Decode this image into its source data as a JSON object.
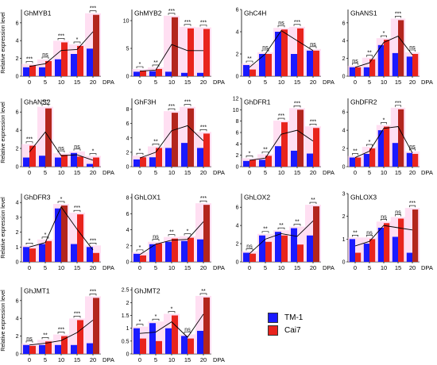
{
  "colors": {
    "tm1": "#1a1aff",
    "cai7": "#e8241d",
    "cai7_dark": "#b3261e",
    "line": "#000000",
    "halo": "#ffc4e8"
  },
  "legend": {
    "items": [
      {
        "label": "TM-1",
        "color": "#1a1aff"
      },
      {
        "label": "Cai7",
        "color": "#e8241d"
      }
    ]
  },
  "chart_data": [
    {
      "type": "bar",
      "title": "GhMYB1",
      "ylabel": "Relative expression level",
      "categories": [
        "0",
        "5",
        "10",
        "15",
        "20"
      ],
      "xunit": "DPA",
      "ylim": [
        0,
        7.5
      ],
      "yticks": [
        0,
        2,
        4,
        6
      ],
      "series": [
        {
          "name": "TM-1",
          "values": [
            1.0,
            1.0,
            1.9,
            2.5,
            3.1
          ]
        },
        {
          "name": "Cai7",
          "values": [
            1.2,
            1.7,
            3.8,
            3.4,
            6.9
          ]
        }
      ],
      "significance": [
        "***",
        "ns",
        "***",
        "*",
        "***"
      ],
      "trend": [
        1.1,
        1.4,
        2.9,
        3.0,
        5.0
      ]
    },
    {
      "type": "bar",
      "title": "GhMYB2",
      "ylabel": "",
      "categories": [
        "0",
        "5",
        "10",
        "15",
        "20"
      ],
      "xunit": "DPA",
      "ylim": [
        0,
        12
      ],
      "yticks": [
        0,
        5,
        10
      ],
      "series": [
        {
          "name": "TM-1",
          "values": [
            0.8,
            0.9,
            0.8,
            0.6,
            0.6
          ]
        },
        {
          "name": "Cai7",
          "values": [
            1.0,
            1.3,
            10.6,
            8.6,
            8.5
          ]
        }
      ],
      "significance": [
        "*",
        "**",
        "***",
        "***",
        "***"
      ],
      "trend": [
        0.9,
        1.1,
        5.7,
        4.6,
        4.6
      ]
    },
    {
      "type": "bar",
      "title": "GhC4H",
      "ylabel": "",
      "categories": [
        "0",
        "5",
        "10",
        "15",
        "20"
      ],
      "xunit": "DPA",
      "ylim": [
        0,
        6
      ],
      "yticks": [
        0,
        2,
        4,
        6
      ],
      "series": [
        {
          "name": "TM-1",
          "values": [
            1.0,
            2.0,
            4.0,
            2.0,
            2.3
          ]
        },
        {
          "name": "Cai7",
          "values": [
            0.6,
            2.0,
            4.2,
            4.3,
            2.3
          ]
        }
      ],
      "significance": [
        "**",
        "ns",
        "ns",
        "***",
        "ns"
      ],
      "trend": [
        0.8,
        2.0,
        4.1,
        3.2,
        2.3
      ]
    },
    {
      "type": "bar",
      "title": "GhANS1",
      "ylabel": "",
      "categories": [
        "0",
        "5",
        "10",
        "15",
        "20"
      ],
      "xunit": "DPA",
      "ylim": [
        0,
        7.5
      ],
      "yticks": [
        0,
        2,
        4,
        6
      ],
      "series": [
        {
          "name": "TM-1",
          "values": [
            1.0,
            1.0,
            3.5,
            2.6,
            2.2
          ]
        },
        {
          "name": "Cai7",
          "values": [
            1.0,
            1.9,
            4.1,
            6.3,
            2.5
          ]
        }
      ],
      "significance": [
        "ns",
        "**",
        "*",
        "***",
        "ns"
      ],
      "trend": [
        1.0,
        1.5,
        3.8,
        4.5,
        2.4
      ]
    },
    {
      "type": "bar",
      "title": "GhANS2",
      "ylabel": "Relative expression level",
      "categories": [
        "0",
        "5",
        "10",
        "15",
        "20"
      ],
      "xunit": "DPA",
      "ylim": [
        0,
        7.5
      ],
      "yticks": [
        0,
        2,
        4,
        6
      ],
      "series": [
        {
          "name": "TM-1",
          "values": [
            1.0,
            1.2,
            1.0,
            1.5,
            0.3
          ]
        },
        {
          "name": "Cai7",
          "values": [
            2.3,
            6.4,
            1.3,
            1.1,
            1.0
          ]
        }
      ],
      "significance": [
        "***",
        "***",
        "ns",
        "ns",
        "*"
      ],
      "trend": [
        1.6,
        3.8,
        1.2,
        1.3,
        0.7
      ]
    },
    {
      "type": "bar",
      "title": "GhF3H",
      "ylabel": "",
      "categories": [
        "0",
        "5",
        "10",
        "15",
        "20"
      ],
      "xunit": "DPA",
      "ylim": [
        0,
        9.5
      ],
      "yticks": [
        0,
        2,
        4,
        6,
        8
      ],
      "series": [
        {
          "name": "TM-1",
          "values": [
            1.0,
            1.3,
            2.6,
            3.3,
            2.6
          ]
        },
        {
          "name": "Cai7",
          "values": [
            1.3,
            2.6,
            7.5,
            8.1,
            4.6
          ]
        }
      ],
      "significance": [
        "*",
        "**",
        "***",
        "***",
        "***"
      ],
      "trend": [
        1.2,
        2.0,
        5.0,
        5.7,
        3.6
      ]
    },
    {
      "type": "bar",
      "title": "GhDFR1",
      "ylabel": "",
      "categories": [
        "0",
        "5",
        "10",
        "15",
        "20"
      ],
      "xunit": "DPA",
      "ylim": [
        0,
        12
      ],
      "yticks": [
        0,
        2,
        4,
        6,
        8,
        10,
        12
      ],
      "series": [
        {
          "name": "TM-1",
          "values": [
            1.0,
            1.2,
            3.6,
            2.8,
            2.3
          ]
        },
        {
          "name": "Cai7",
          "values": [
            1.2,
            1.9,
            7.8,
            10.0,
            6.8
          ]
        }
      ],
      "significance": [
        "*",
        "**",
        "***",
        "***",
        "***"
      ],
      "trend": [
        1.1,
        1.5,
        5.7,
        6.4,
        4.5
      ]
    },
    {
      "type": "bar",
      "title": "GhDFR2",
      "ylabel": "",
      "categories": [
        "0",
        "5",
        "10",
        "15",
        "20"
      ],
      "xunit": "DPA",
      "ylim": [
        0,
        7.5
      ],
      "yticks": [
        0,
        2,
        4,
        6
      ],
      "series": [
        {
          "name": "TM-1",
          "values": [
            1.0,
            1.4,
            4.0,
            2.6,
            1.5
          ]
        },
        {
          "name": "Cai7",
          "values": [
            1.0,
            2.0,
            4.4,
            6.3,
            1.4
          ]
        }
      ],
      "significance": [
        "**",
        "*",
        "*",
        "***",
        "ns"
      ],
      "trend": [
        1.0,
        1.7,
        4.2,
        4.4,
        1.5
      ]
    },
    {
      "type": "bar",
      "title": "GhDFR3",
      "ylabel": "Relative expression level",
      "categories": [
        "0",
        "5",
        "10",
        "15",
        "20"
      ],
      "xunit": "DPA",
      "ylim": [
        0,
        4.6
      ],
      "yticks": [
        0,
        1,
        2,
        3,
        4
      ],
      "series": [
        {
          "name": "TM-1",
          "values": [
            1.0,
            1.2,
            3.6,
            1.2,
            1.0
          ]
        },
        {
          "name": "Cai7",
          "values": [
            0.9,
            1.4,
            3.8,
            3.2,
            0.6
          ]
        }
      ],
      "significance": [
        "*",
        "*",
        "*",
        "***",
        "***"
      ],
      "trend": [
        1.0,
        1.3,
        3.7,
        2.2,
        0.8
      ]
    },
    {
      "type": "bar",
      "title": "GhLOX1",
      "ylabel": "",
      "categories": [
        "0",
        "5",
        "10",
        "15",
        "20"
      ],
      "xunit": "DPA",
      "ylim": [
        0,
        8.5
      ],
      "yticks": [
        0,
        2,
        4,
        6,
        8
      ],
      "series": [
        {
          "name": "TM-1",
          "values": [
            1.0,
            2.2,
            2.5,
            2.6,
            2.8
          ]
        },
        {
          "name": "Cai7",
          "values": [
            0.8,
            2.3,
            2.9,
            3.0,
            7.1
          ]
        }
      ],
      "significance": [
        "*",
        "ns",
        "**",
        "*",
        "***"
      ],
      "trend": [
        0.9,
        2.2,
        2.7,
        2.8,
        5.0
      ]
    },
    {
      "type": "bar",
      "title": "GhLOX2",
      "ylabel": "",
      "categories": [
        "0",
        "5",
        "10",
        "15",
        "20"
      ],
      "xunit": "DPA",
      "ylim": [
        0,
        7.5
      ],
      "yticks": [
        0,
        2,
        4,
        6
      ],
      "series": [
        {
          "name": "TM-1",
          "values": [
            1.0,
            2.9,
            3.3,
            3.7,
            2.9
          ]
        },
        {
          "name": "Cai7",
          "values": [
            0.9,
            2.2,
            2.9,
            1.9,
            6.1
          ]
        }
      ],
      "significance": [
        "ns",
        "**",
        "**",
        "**",
        "**"
      ],
      "trend": [
        0.9,
        2.5,
        3.1,
        2.8,
        4.5
      ]
    },
    {
      "type": "bar",
      "title": "GhLOX3",
      "ylabel": "",
      "categories": [
        "0",
        "5",
        "10",
        "15",
        "20"
      ],
      "xunit": "DPA",
      "ylim": [
        0,
        3.0
      ],
      "yticks": [
        0,
        1,
        2,
        3
      ],
      "series": [
        {
          "name": "TM-1",
          "values": [
            1.0,
            0.8,
            1.5,
            1.1,
            0.4
          ]
        },
        {
          "name": "Cai7",
          "values": [
            0.4,
            1.0,
            1.7,
            1.9,
            2.3
          ]
        }
      ],
      "significance": [
        "**",
        "ns",
        "ns",
        "ns",
        "***"
      ],
      "trend": [
        0.7,
        0.9,
        1.6,
        1.5,
        1.4
      ]
    },
    {
      "type": "bar",
      "title": "GhJMT1",
      "ylabel": "Relative expression level",
      "categories": [
        "0",
        "5",
        "10",
        "15",
        "20"
      ],
      "xunit": "DPA",
      "ylim": [
        0,
        7.5
      ],
      "yticks": [
        0,
        2,
        4,
        6
      ],
      "series": [
        {
          "name": "TM-1",
          "values": [
            1.0,
            1.0,
            1.0,
            1.0,
            1.2
          ]
        },
        {
          "name": "Cai7",
          "values": [
            0.9,
            1.4,
            2.0,
            3.8,
            6.3
          ]
        }
      ],
      "significance": [
        "ns",
        "**",
        "***",
        "***",
        "***"
      ],
      "trend": [
        1.0,
        1.2,
        1.5,
        2.4,
        3.8
      ]
    },
    {
      "type": "bar",
      "title": "GhJMT2",
      "ylabel": "",
      "categories": [
        "0",
        "5",
        "10",
        "15",
        "20"
      ],
      "xunit": "DPA",
      "ylim": [
        0,
        2.6
      ],
      "yticks": [
        0,
        0.5,
        1.0,
        1.5,
        2.0,
        2.5
      ],
      "series": [
        {
          "name": "TM-1",
          "values": [
            1.0,
            1.2,
            1.0,
            0.7,
            0.9
          ]
        },
        {
          "name": "Cai7",
          "values": [
            0.6,
            0.5,
            1.5,
            0.6,
            2.2
          ]
        }
      ],
      "significance": [
        "*",
        "*",
        "*",
        "ns",
        "**"
      ],
      "trend": [
        0.8,
        0.85,
        1.25,
        0.65,
        1.55
      ]
    }
  ]
}
